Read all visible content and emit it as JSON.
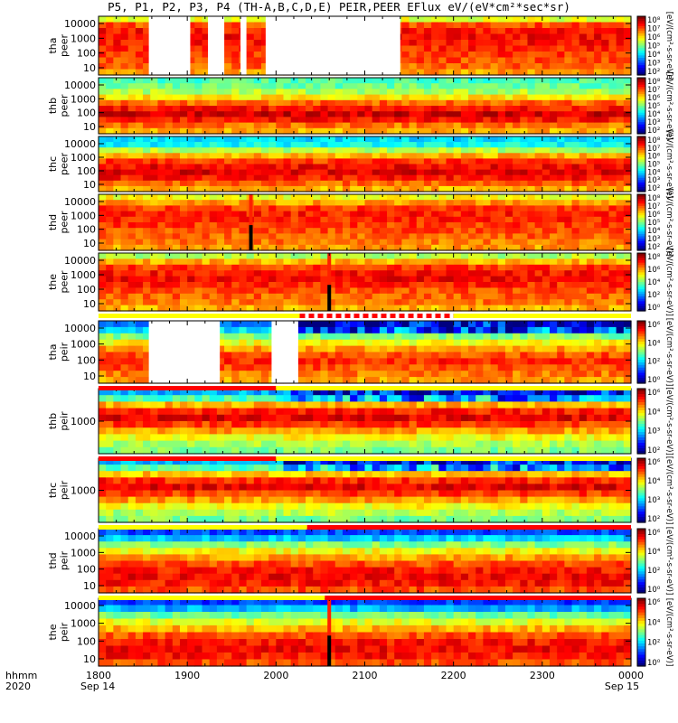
{
  "title": "P5, P1, P2, P3, P4 (TH-A,B,C,D,E) PEIR,PEER EFlux eV/(eV*cm²*sec*sr)",
  "colors": {
    "background": "#ffffff",
    "ink": "#000000",
    "gap": "#ffffff",
    "flag_red": "#ff0000",
    "flag_yellow": "#ffff00"
  },
  "chart_data": {
    "type": "heatmap",
    "x_axis": {
      "label_left": [
        "hhmm",
        "2020"
      ],
      "ticks": [
        "1800",
        "1900",
        "2000",
        "2100",
        "2200",
        "2300",
        "0000"
      ],
      "dates": [
        "Sep 14",
        "Sep 15"
      ],
      "range": [
        "1800",
        "0000"
      ]
    },
    "colorbar_ticks_7": [
      "10⁸",
      "10⁷",
      "10⁶",
      "10⁵",
      "10⁴",
      "10³",
      "10²"
    ],
    "colorbar_ticks_5": [
      "10⁸",
      "10⁶",
      "10⁴",
      "10²",
      "10⁰"
    ],
    "colorbar_ticks_4": [
      "10⁶",
      "10⁴",
      "10²",
      "10⁰"
    ],
    "colorbar_ticks_ion": [
      "10⁶",
      "10⁴",
      "10³",
      "10²"
    ],
    "colorbar_unit": "[eV/(cm²-s-sr-eV)]",
    "panels": [
      {
        "probe": "tha",
        "instrument": "peer",
        "yticks": [
          "10000",
          "1000",
          "100",
          "10"
        ],
        "log_y": true,
        "colorbar": "ticks_7",
        "gaps": [
          [
            "1834",
            "1902"
          ],
          [
            "1914",
            "1925"
          ],
          [
            "1936",
            "1940"
          ],
          [
            "1953",
            "2084"
          ]
        ],
        "dropouts": []
      },
      {
        "probe": "thb",
        "instrument": "peer",
        "yticks": [
          "10000",
          "1000",
          "100",
          "10"
        ],
        "log_y": true,
        "colorbar": "ticks_7",
        "gaps": [],
        "dropouts": []
      },
      {
        "probe": "thc",
        "instrument": "peer",
        "yticks": [
          "10000",
          "1000",
          "100",
          "10"
        ],
        "log_y": true,
        "colorbar": "ticks_7",
        "gaps": [],
        "dropouts": []
      },
      {
        "probe": "thd",
        "instrument": "peer",
        "yticks": [
          "10000",
          "1000",
          "100",
          "10"
        ],
        "log_y": true,
        "colorbar": "ticks_7",
        "gaps": [],
        "dropouts": [
          "1943"
        ]
      },
      {
        "probe": "the",
        "instrument": "peer",
        "yticks": [
          "10000",
          "1000",
          "100",
          "10"
        ],
        "log_y": true,
        "colorbar": "ticks_5",
        "gaps": [],
        "dropouts": [
          "2036"
        ]
      },
      {
        "probe": "tha",
        "instrument": "peir",
        "yticks": [
          "10000",
          "1000",
          "100",
          "10"
        ],
        "log_y": true,
        "colorbar": "ticks_4",
        "gaps": [
          [
            "1834",
            "1882"
          ],
          [
            "1957",
            "2015"
          ]
        ],
        "dropouts": []
      },
      {
        "probe": "thb",
        "instrument": "peir",
        "yticks": [
          "1000"
        ],
        "log_y": true,
        "colorbar": "ticks_ion",
        "gaps": [],
        "dropouts": []
      },
      {
        "probe": "thc",
        "instrument": "peir",
        "yticks": [
          "1000"
        ],
        "log_y": true,
        "colorbar": "ticks_ion",
        "gaps": [],
        "dropouts": []
      },
      {
        "probe": "thd",
        "instrument": "peir",
        "yticks": [
          "10000",
          "1000",
          "100",
          "10"
        ],
        "log_y": true,
        "colorbar": "ticks_4",
        "gaps": [],
        "dropouts": []
      },
      {
        "probe": "the",
        "instrument": "peir",
        "yticks": [
          "10000",
          "1000",
          "100",
          "10"
        ],
        "log_y": true,
        "colorbar": "ticks_4",
        "gaps": [],
        "dropouts": [
          "2036"
        ]
      }
    ],
    "flag_bars": [
      {
        "after_panel": 4,
        "segments": [
          [
            "1800",
            "2016",
            "yellow"
          ],
          [
            "2016",
            "2200",
            "red-dashed"
          ],
          [
            "2200",
            "0000",
            "yellow"
          ]
        ]
      },
      {
        "after_panel": 5,
        "segments": [
          [
            "1800",
            "2000",
            "red"
          ],
          [
            "2000",
            "0000",
            "yellow"
          ]
        ]
      },
      {
        "after_panel": 6,
        "segments": [
          [
            "1800",
            "2000",
            "red"
          ],
          [
            "2000",
            "0000",
            "yellow"
          ]
        ]
      },
      {
        "after_panel": 7,
        "segments": [
          [
            "1800",
            "1981",
            "yellow"
          ],
          [
            "1981",
            "0000",
            "red"
          ]
        ]
      },
      {
        "after_panel": 8,
        "segments": [
          [
            "1800",
            "2033",
            "yellow"
          ],
          [
            "2033",
            "0000",
            "red"
          ]
        ]
      }
    ]
  }
}
